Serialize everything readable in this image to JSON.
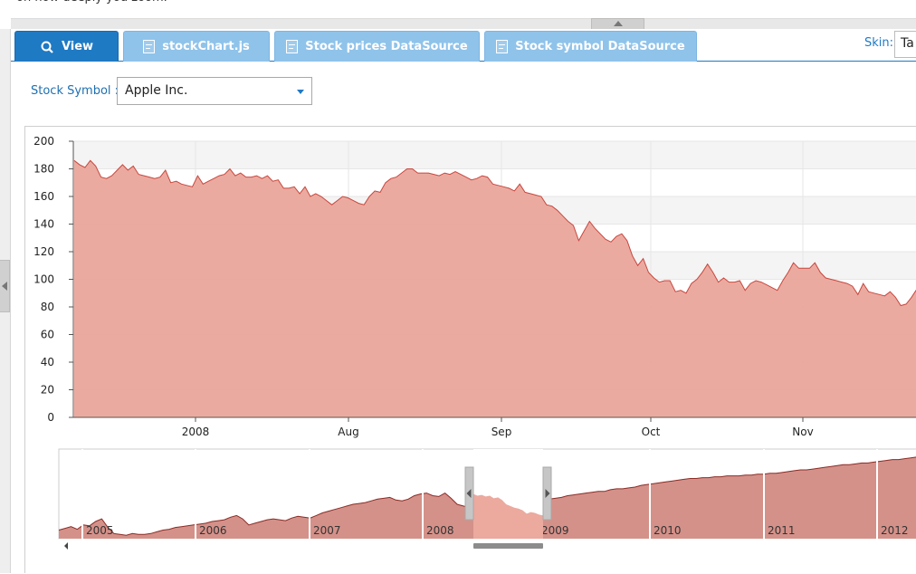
{
  "top_text": "on how deeply you zoom.",
  "tabs": [
    {
      "label": "View",
      "icon": "search-icon",
      "active": true
    },
    {
      "label": "stockChart.js",
      "icon": "document-icon",
      "active": false
    },
    {
      "label": "Stock prices DataSource",
      "icon": "document-icon",
      "active": false
    },
    {
      "label": "Stock symbol DataSource",
      "icon": "document-icon",
      "active": false
    }
  ],
  "skin": {
    "label": "Skin:",
    "value": "Ta"
  },
  "stock_symbol": {
    "label": "Stock Symbol :",
    "value": "Apple Inc."
  },
  "colors": {
    "accent": "#1f7ac4",
    "tab_inactive": "#8fc3ea",
    "area_fill": "#eaa59b",
    "area_line": "#c8473e",
    "navigator_fill": "#d49189",
    "navigator_window": "#eca99e"
  },
  "chart_data": {
    "type": "area",
    "ylim": [
      0,
      200
    ],
    "yticks": [
      "0",
      "20",
      "40",
      "60",
      "80",
      "100",
      "120",
      "140",
      "160",
      "180",
      "200"
    ],
    "xticks": [
      "2008",
      "Aug",
      "Sep",
      "Oct",
      "Nov"
    ],
    "series": [
      {
        "values": [
          186,
          183,
          181,
          186,
          182,
          174,
          173,
          175,
          179,
          183,
          179,
          182,
          176,
          175,
          174,
          173,
          174,
          179,
          170,
          171,
          169,
          168,
          167,
          175,
          169,
          171,
          173,
          175,
          176,
          180,
          175,
          177,
          174,
          174,
          175,
          173,
          175,
          171,
          172,
          166,
          166,
          167,
          162,
          167,
          160,
          162,
          160,
          157,
          154,
          157,
          160,
          159,
          157,
          155,
          154,
          160,
          164,
          163,
          170,
          173,
          174,
          177,
          180,
          180,
          177,
          177,
          177,
          176,
          175,
          177,
          176,
          178,
          176,
          174,
          172,
          173,
          175,
          174,
          169,
          168,
          167,
          166,
          164,
          169,
          163,
          162,
          161,
          160,
          154,
          153,
          150,
          146,
          142,
          139,
          128,
          135,
          142,
          137,
          133,
          129,
          127,
          131,
          133,
          128,
          117,
          110,
          115,
          105,
          101,
          98,
          99,
          99,
          91,
          92,
          90,
          97,
          100,
          105,
          111,
          105,
          98,
          101,
          98,
          98,
          99,
          92,
          97,
          99,
          98,
          96,
          94,
          92,
          99,
          105,
          112,
          108,
          108,
          108,
          112,
          105,
          101,
          100,
          99,
          98,
          97,
          95,
          89,
          97,
          91,
          90,
          89,
          88,
          91,
          87,
          81,
          82,
          87,
          93
        ]
      }
    ],
    "navigator": {
      "x_labels": [
        "2005",
        "2006",
        "2007",
        "2008",
        "2009",
        "2010",
        "2011",
        "2012"
      ],
      "values": [
        10,
        12,
        14,
        11,
        16,
        15,
        20,
        23,
        13,
        6,
        5,
        4,
        6,
        5,
        5,
        6,
        8,
        10,
        11,
        13,
        14,
        15,
        16,
        17,
        18,
        20,
        21,
        22,
        25,
        27,
        23,
        16,
        18,
        20,
        22,
        23,
        22,
        21,
        24,
        26,
        25,
        24,
        27,
        30,
        32,
        34,
        36,
        38,
        40,
        41,
        42,
        44,
        46,
        47,
        48,
        45,
        44,
        46,
        50,
        52,
        53,
        50,
        49,
        53,
        47,
        40,
        38,
        36,
        34,
        26,
        22,
        25,
        31,
        34,
        36,
        38,
        40,
        42,
        44,
        45,
        46,
        47,
        48,
        50,
        51,
        52,
        53,
        54,
        55,
        55,
        57,
        58,
        58,
        59,
        60,
        62,
        63,
        64,
        65,
        66,
        67,
        68,
        69,
        70,
        70,
        71,
        71,
        72,
        72,
        73,
        73,
        73,
        74,
        74,
        75,
        75,
        76,
        76,
        77,
        78,
        79,
        80,
        80,
        81,
        82,
        83,
        84,
        85,
        86,
        86,
        87,
        88,
        88,
        89,
        90,
        91,
        92,
        92,
        93,
        94,
        95
      ]
    }
  }
}
